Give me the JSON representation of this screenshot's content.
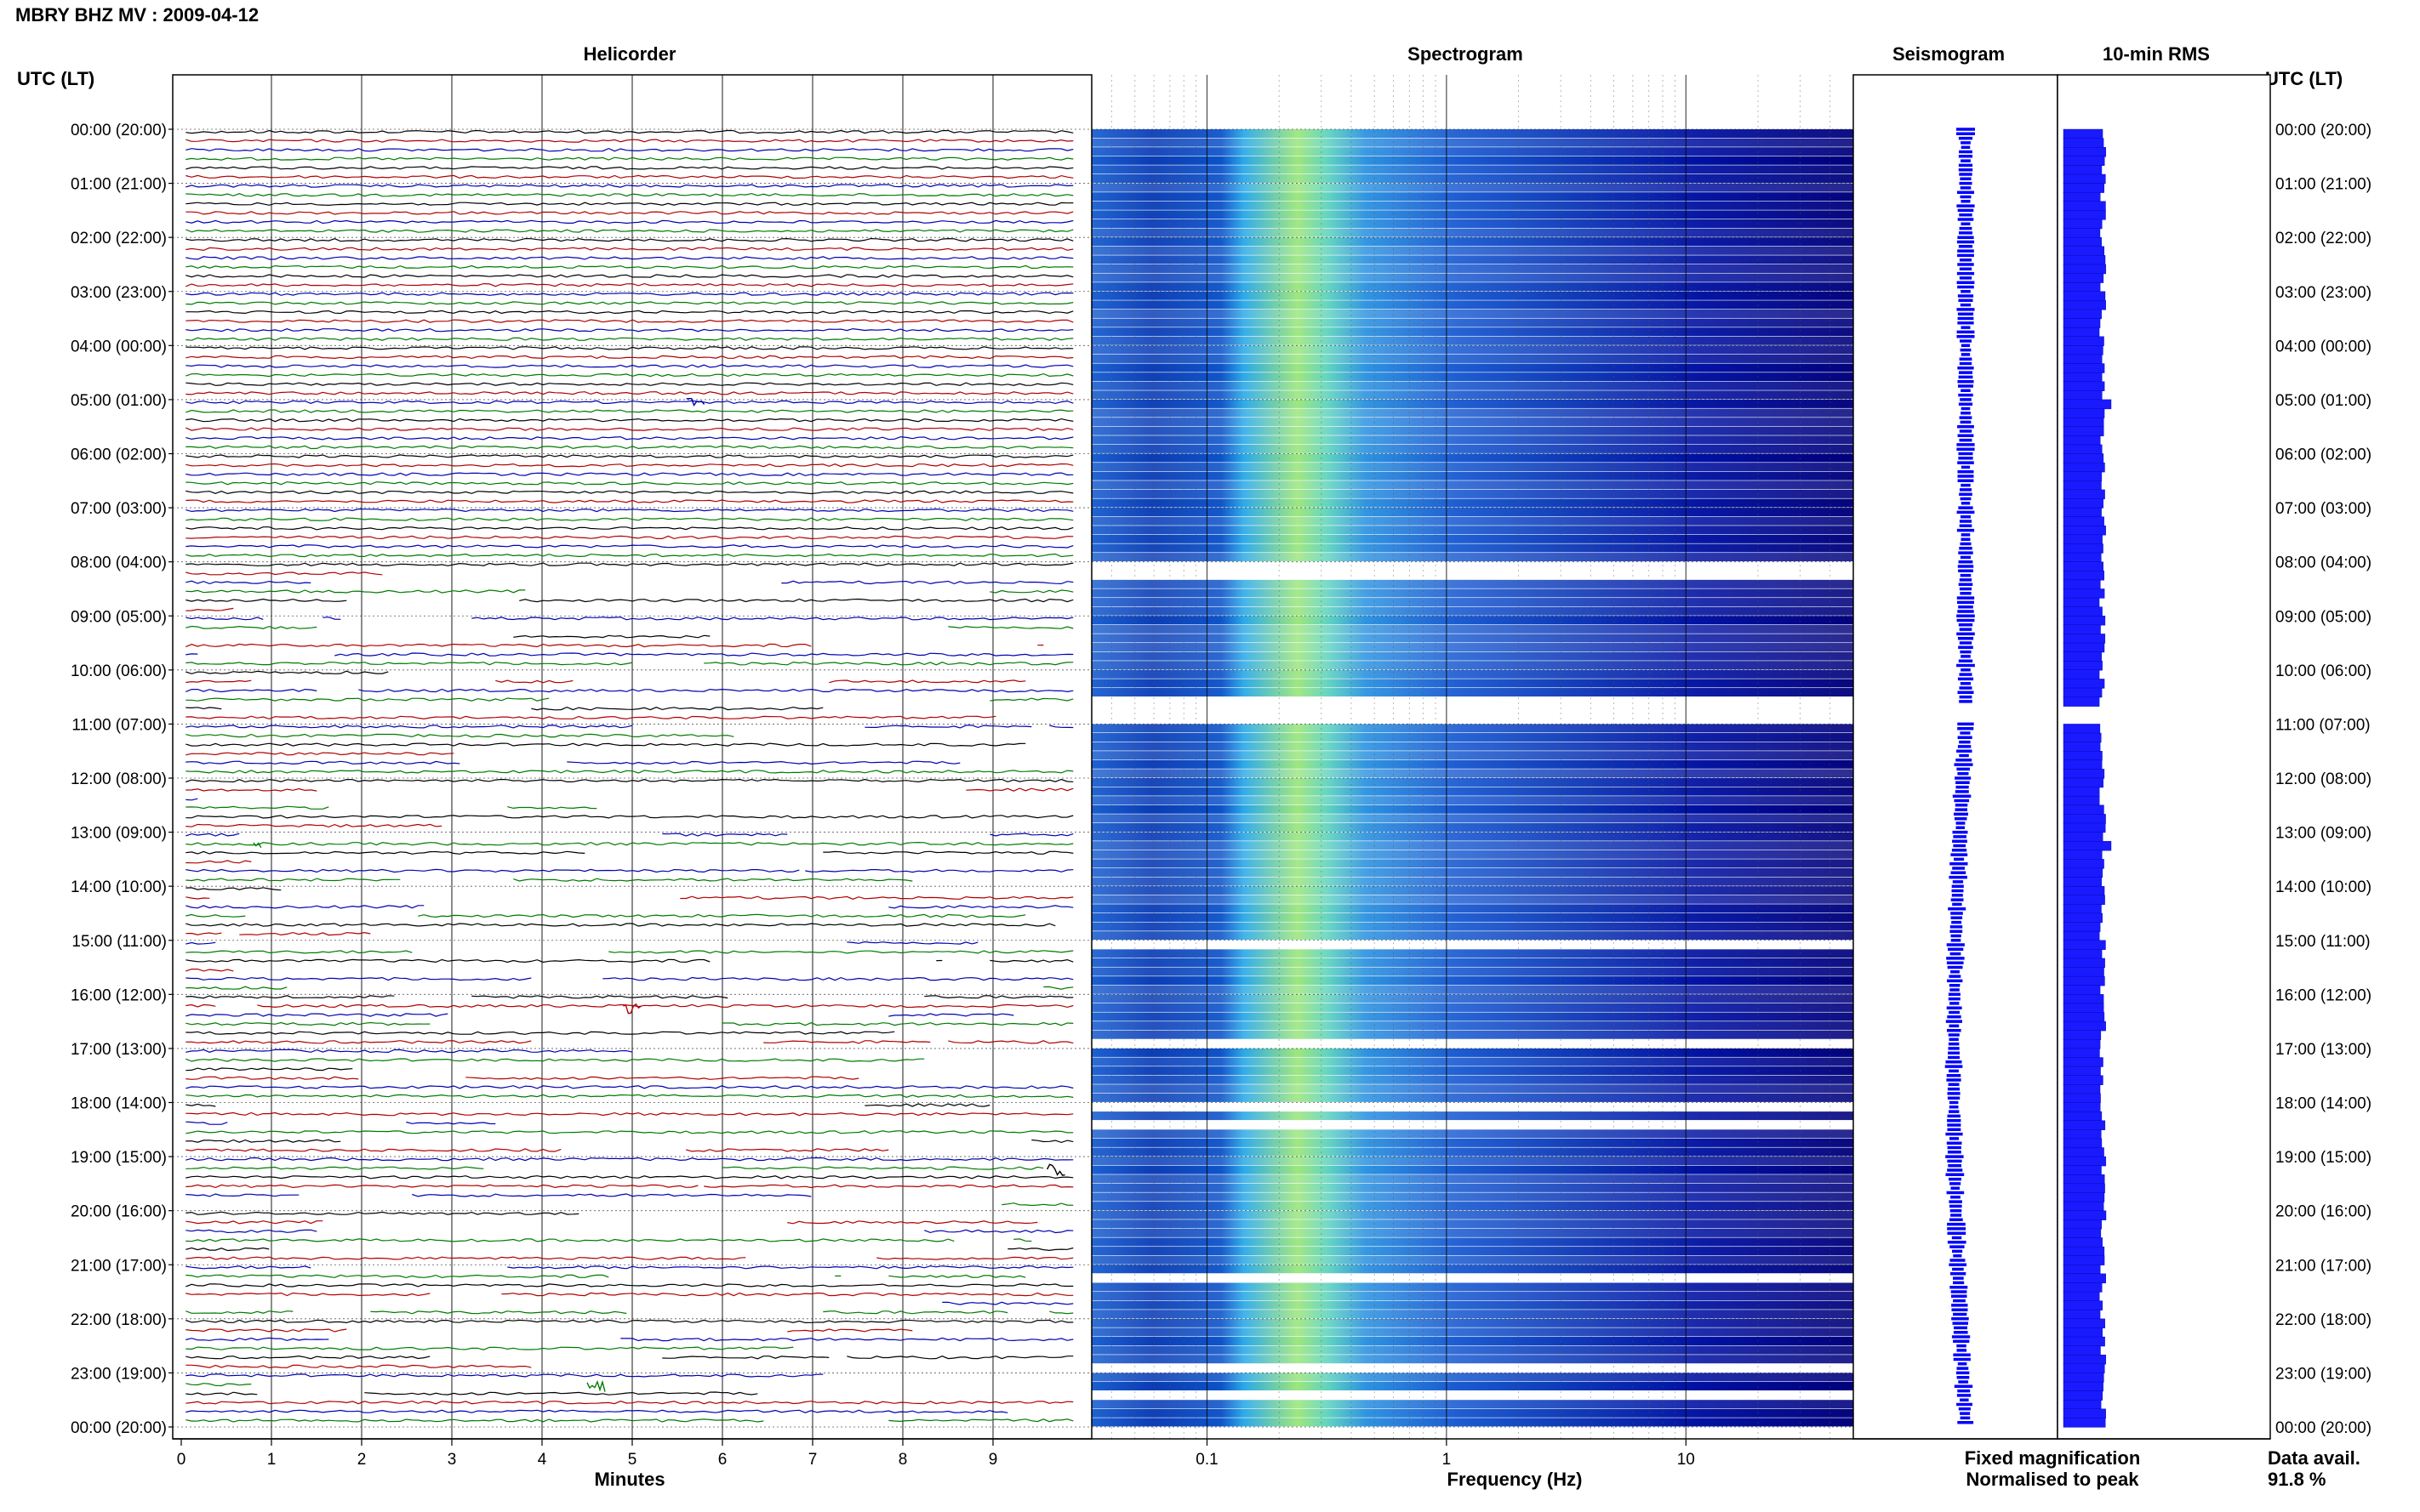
{
  "header": {
    "title": "MBRY BHZ MV : 2009-04-12",
    "utc_label_left": "UTC (LT)",
    "utc_label_right": "UTC (LT)"
  },
  "panels": {
    "helicorder": "Helicorder",
    "spectrogram": "Spectrogram",
    "seismogram": "Seismogram",
    "rms": "10-min RMS"
  },
  "legend": {
    "fixed": "Fixed magnification",
    "normalised": "Normalised to peak",
    "fixed_color": "#0000ff",
    "normalised_color": "#ff0000"
  },
  "footer": {
    "avail_label": "Data avail.",
    "avail_value": "91.8 %"
  },
  "colors": {
    "trace_black": "#000000",
    "trace_red": "#b00000",
    "trace_blue": "#0000b0",
    "trace_green": "#007a00",
    "spectro_low": "#00007a",
    "spectro_high": "#ffff66",
    "rms_fill": "#1a1aff"
  },
  "chart_data": {
    "type": "heatmap",
    "date": "2009-04-12",
    "time_labels": [
      "00:00 (20:00)",
      "01:00 (21:00)",
      "02:00 (22:00)",
      "03:00 (23:00)",
      "04:00 (00:00)",
      "05:00 (01:00)",
      "06:00 (02:00)",
      "07:00 (03:00)",
      "08:00 (04:00)",
      "09:00 (05:00)",
      "10:00 (06:00)",
      "11:00 (07:00)",
      "12:00 (08:00)",
      "13:00 (09:00)",
      "14:00 (10:00)",
      "15:00 (11:00)",
      "16:00 (12:00)",
      "17:00 (13:00)",
      "18:00 (14:00)",
      "19:00 (15:00)",
      "20:00 (16:00)",
      "21:00 (17:00)",
      "22:00 (18:00)",
      "23:00 (19:00)",
      "00:00 (20:00)"
    ],
    "helicorder": {
      "xlabel": "Minutes",
      "xticks": [
        "0",
        "1",
        "2",
        "3",
        "4",
        "5",
        "6",
        "7",
        "8",
        "9"
      ],
      "xlim": [
        0,
        10
      ],
      "trace_color_cycle": [
        "black",
        "red",
        "blue",
        "green"
      ]
    },
    "spectrogram": {
      "xlabel": "Frequency (Hz)",
      "xscale": "log",
      "xlim": [
        0.033,
        50
      ],
      "xticks": [
        "0.1",
        "1",
        "10"
      ],
      "gaps_utc_hours": [
        [
          8.0,
          8.2
        ],
        [
          10.6,
          11.0
        ]
      ]
    },
    "rms": {
      "gaps_utc_hours": [
        [
          10.65,
          11.0
        ]
      ],
      "spikes_utc_hours": [
        5.0,
        13.2
      ]
    },
    "seismogram": {
      "gaps_utc_hours": [
        [
          10.6,
          11.0
        ]
      ]
    },
    "data_availability_percent": 91.8
  }
}
